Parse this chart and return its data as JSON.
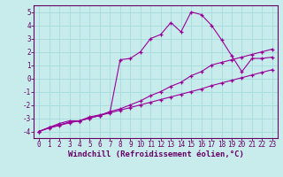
{
  "title": "",
  "xlabel": "Windchill (Refroidissement éolien,°C)",
  "ylabel": "",
  "bg_color": "#c8ecec",
  "line_color": "#990099",
  "grid_color": "#aadddd",
  "axis_color": "#660066",
  "xlim": [
    -0.5,
    23.5
  ],
  "ylim": [
    -4.5,
    5.5
  ],
  "xticks": [
    0,
    1,
    2,
    3,
    4,
    5,
    6,
    7,
    8,
    9,
    10,
    11,
    12,
    13,
    14,
    15,
    16,
    17,
    18,
    19,
    20,
    21,
    22,
    23
  ],
  "yticks": [
    -4,
    -3,
    -2,
    -1,
    0,
    1,
    2,
    3,
    4,
    5
  ],
  "line1_x": [
    0,
    1,
    2,
    3,
    4,
    5,
    6,
    7,
    8,
    9,
    10,
    11,
    12,
    13,
    14,
    15,
    16,
    17,
    18,
    19,
    20,
    21,
    22,
    23
  ],
  "line1_y": [
    -4.0,
    -3.75,
    -3.55,
    -3.35,
    -3.2,
    -3.0,
    -2.8,
    -2.6,
    -2.4,
    -2.2,
    -2.0,
    -1.8,
    -1.6,
    -1.4,
    -1.2,
    -1.0,
    -0.8,
    -0.55,
    -0.35,
    -0.15,
    0.05,
    0.25,
    0.45,
    0.65
  ],
  "line2_x": [
    0,
    1,
    2,
    3,
    4,
    5,
    6,
    7,
    8,
    9,
    10,
    11,
    12,
    13,
    14,
    15,
    16,
    17,
    18,
    19,
    20,
    21,
    22,
    23
  ],
  "line2_y": [
    -4.0,
    -3.7,
    -3.5,
    -3.3,
    -3.2,
    -3.0,
    -2.8,
    -2.5,
    -2.3,
    -2.0,
    -1.7,
    -1.3,
    -1.0,
    -0.6,
    -0.3,
    0.2,
    0.5,
    1.0,
    1.2,
    1.4,
    1.6,
    1.8,
    2.0,
    2.2
  ],
  "line3_x": [
    0,
    1,
    2,
    3,
    4,
    5,
    6,
    7,
    8,
    9,
    10,
    11,
    12,
    13,
    14,
    15,
    16,
    17,
    18,
    19,
    20,
    21,
    22,
    23
  ],
  "line3_y": [
    -4.0,
    -3.7,
    -3.4,
    -3.2,
    -3.2,
    -2.9,
    -2.75,
    -2.55,
    1.4,
    1.5,
    2.0,
    3.0,
    3.3,
    4.2,
    3.5,
    5.0,
    4.8,
    4.0,
    2.9,
    1.7,
    0.5,
    1.5,
    1.5,
    1.6
  ],
  "tick_fontsize": 5.5,
  "label_fontsize": 6.5
}
